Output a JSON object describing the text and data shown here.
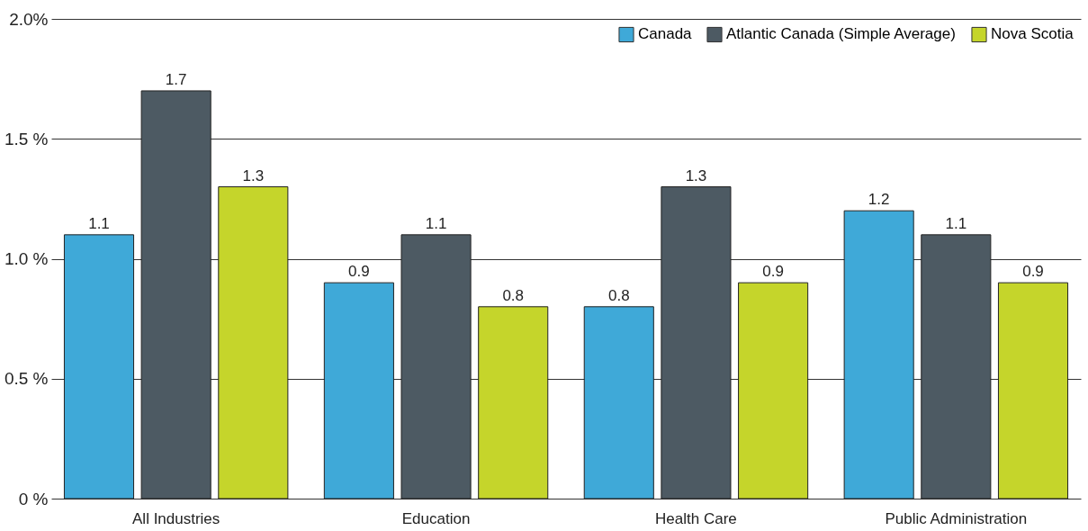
{
  "chart_data": {
    "type": "bar",
    "categories": [
      "All Industries",
      "Education",
      "Health Care",
      "Public Administration"
    ],
    "series": [
      {
        "name": "Canada",
        "color": "#3fa9d8",
        "values": [
          1.1,
          0.9,
          0.8,
          1.2
        ]
      },
      {
        "name": "Atlantic Canada (Simple Average)",
        "color": "#4d5a63",
        "values": [
          1.7,
          1.1,
          1.3,
          1.1
        ]
      },
      {
        "name": "Nova Scotia",
        "color": "#c5d52b",
        "values": [
          1.3,
          0.8,
          0.9,
          0.9
        ]
      }
    ],
    "ylim": [
      0,
      2
    ],
    "yticks": [
      {
        "value": 0,
        "label": "0  %"
      },
      {
        "value": 0.5,
        "label": "0.5 %"
      },
      {
        "value": 1,
        "label": "1.0 %"
      },
      {
        "value": 1.5,
        "label": "1.5 %"
      },
      {
        "value": 2,
        "label": "2.0%"
      }
    ],
    "grid": "y",
    "legend": "top right",
    "data_labels": true
  }
}
